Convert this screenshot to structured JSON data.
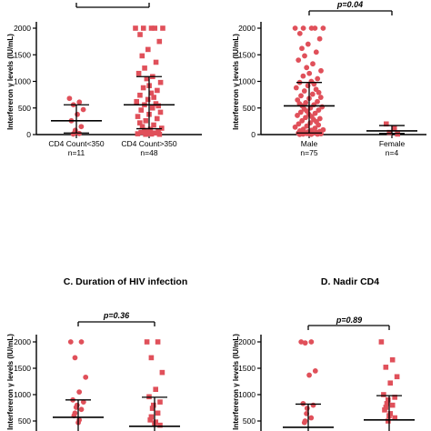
{
  "colors": {
    "point": "#e0505a",
    "axis": "#000000",
    "bar": "#000000"
  },
  "chart_data": [
    {
      "type": "scatter",
      "title": "",
      "ylabel": "Interfereron γ levels (IU/mL)",
      "ylim": [
        0,
        2000
      ],
      "yticks": [
        "0",
        "500",
        "1000",
        "1500",
        "2000"
      ],
      "pvalue": "",
      "groups": [
        {
          "label": "CD4 Count<350",
          "n": "n=11",
          "marker": "circle",
          "median": 260,
          "iqr": [
            30,
            560
          ],
          "values": [
            680,
            610,
            560,
            470,
            380,
            260,
            150,
            80,
            40,
            20,
            10
          ]
        },
        {
          "label": "CD4 Count>350",
          "n": "n=48",
          "marker": "square",
          "median": 560,
          "iqr": [
            110,
            1090
          ],
          "values": [
            2000,
            2000,
            2000,
            2000,
            2000,
            1880,
            1750,
            1600,
            1480,
            1360,
            1250,
            1150,
            1090,
            1050,
            980,
            920,
            880,
            830,
            780,
            740,
            700,
            660,
            620,
            580,
            560,
            540,
            500,
            460,
            420,
            380,
            340,
            300,
            260,
            220,
            180,
            150,
            120,
            100,
            80,
            60,
            50,
            40,
            30,
            20,
            15,
            10,
            5,
            5
          ]
        }
      ]
    },
    {
      "type": "scatter",
      "title": "",
      "ylabel": "Interfereron γ levels (IU/mL)",
      "ylim": [
        0,
        2000
      ],
      "yticks": [
        "0",
        "500",
        "1000",
        "1500",
        "2000"
      ],
      "pvalue": "p=0.04",
      "groups": [
        {
          "label": "Male",
          "n": "n=75",
          "marker": "circle",
          "median": 540,
          "iqr": [
            30,
            980
          ],
          "values": [
            2000,
            2000,
            2000,
            2000,
            2000,
            1900,
            1800,
            1700,
            1620,
            1550,
            1480,
            1400,
            1330,
            1260,
            1200,
            1150,
            1100,
            1050,
            1000,
            980,
            950,
            920,
            880,
            850,
            820,
            790,
            760,
            730,
            700,
            680,
            650,
            620,
            600,
            580,
            560,
            540,
            520,
            500,
            480,
            460,
            440,
            420,
            400,
            380,
            360,
            340,
            320,
            300,
            280,
            260,
            240,
            220,
            200,
            180,
            160,
            140,
            120,
            100,
            90,
            80,
            70,
            60,
            50,
            45,
            40,
            35,
            30,
            25,
            20,
            15,
            12,
            10,
            8,
            5,
            3
          ]
        },
        {
          "label": "Female",
          "n": "n=4",
          "marker": "square",
          "median": 70,
          "iqr": [
            20,
            170
          ],
          "values": [
            200,
            120,
            40,
            10
          ]
        }
      ]
    },
    {
      "type": "scatter",
      "title": "C. Duration of HIV infection",
      "ylabel": "Interfereron γ levels (IU/mL)",
      "ylim": [
        0,
        2000
      ],
      "yticks": [
        "500",
        "1000",
        "1500",
        "2000"
      ],
      "pvalue": "p=0.36",
      "groups": [
        {
          "label": "",
          "n": "",
          "marker": "circle",
          "median": 570,
          "iqr": [
            0,
            900
          ],
          "values": [
            2000,
            2000,
            1700,
            1330,
            1050,
            900,
            860,
            800,
            760,
            720,
            650,
            600,
            520,
            470
          ]
        },
        {
          "label": "",
          "n": "",
          "marker": "square",
          "median": 400,
          "iqr": [
            0,
            950
          ],
          "values": [
            2000,
            2000,
            1700,
            1420,
            1100,
            960,
            860,
            800,
            740,
            650,
            580,
            520,
            480,
            450,
            420
          ]
        }
      ]
    },
    {
      "type": "scatter",
      "title": "D. Nadir CD4",
      "ylabel": "Interfereron γ levels (IU/mL)",
      "ylim": [
        0,
        2000
      ],
      "yticks": [
        "500",
        "1000",
        "1500",
        "2000"
      ],
      "pvalue": "p=0.89",
      "groups": [
        {
          "label": "",
          "n": "",
          "marker": "circle",
          "median": 380,
          "iqr": [
            0,
            820
          ],
          "values": [
            2000,
            2000,
            1980,
            1450,
            1370,
            830,
            800,
            740,
            640,
            560,
            500,
            470
          ]
        },
        {
          "label": "",
          "n": "",
          "marker": "square",
          "median": 520,
          "iqr": [
            0,
            980
          ],
          "values": [
            2000,
            1660,
            1520,
            1340,
            1220,
            1000,
            950,
            900,
            830,
            800,
            760,
            710,
            640,
            600,
            560,
            500
          ]
        }
      ]
    }
  ]
}
